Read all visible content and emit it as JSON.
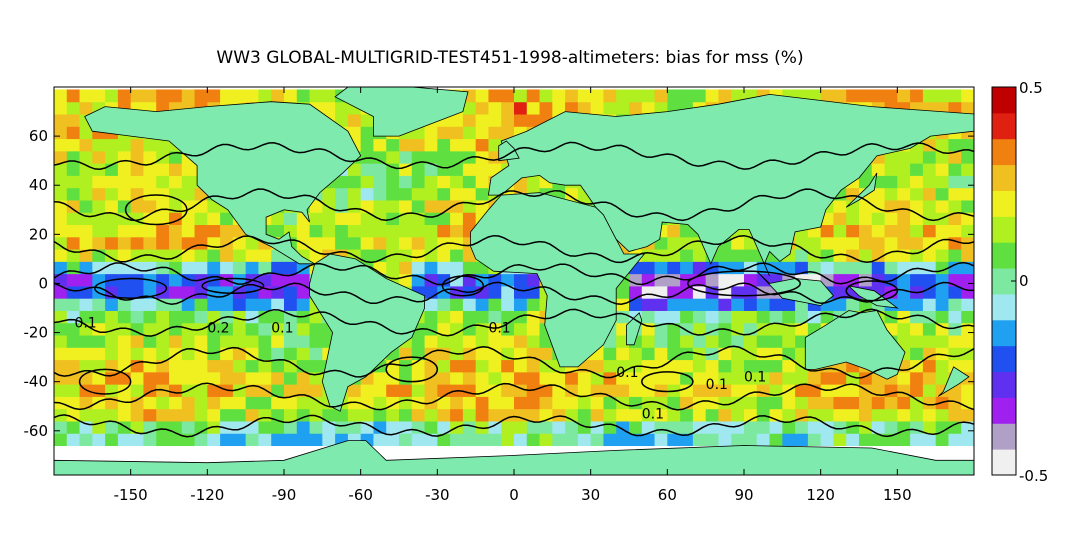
{
  "chart_data": {
    "type": "heatmap",
    "title": "WW3 GLOBAL-MULTIGRID-TEST451-1998-altimeters: bias for mss (%)",
    "x_ticks": [
      -150,
      -120,
      -90,
      -60,
      -30,
      0,
      30,
      60,
      90,
      120,
      150
    ],
    "y_ticks": [
      -60,
      -40,
      -20,
      0,
      20,
      40,
      60
    ],
    "xlim": [
      -180,
      180
    ],
    "ylim": [
      -78,
      80
    ],
    "colorbar": {
      "range": [
        -0.5,
        0.5
      ],
      "tick_labels": [
        "0.5",
        "0",
        "-0.5"
      ],
      "colors": [
        "#f0f0f0",
        "#b0a0c8",
        "#a020f0",
        "#6030f0",
        "#2050f0",
        "#20a0f0",
        "#a0e8f0",
        "#7ce8a0",
        "#60e040",
        "#b0f020",
        "#f0f020",
        "#f0c020",
        "#f08010",
        "#e02010",
        "#c00000"
      ]
    },
    "contour_labels": [
      "0.1",
      "0.2",
      "0.1",
      "0.1",
      "0.1",
      "0.1",
      "0.1",
      "0.1"
    ],
    "land_color": "#7eeaae",
    "grid": false
  }
}
